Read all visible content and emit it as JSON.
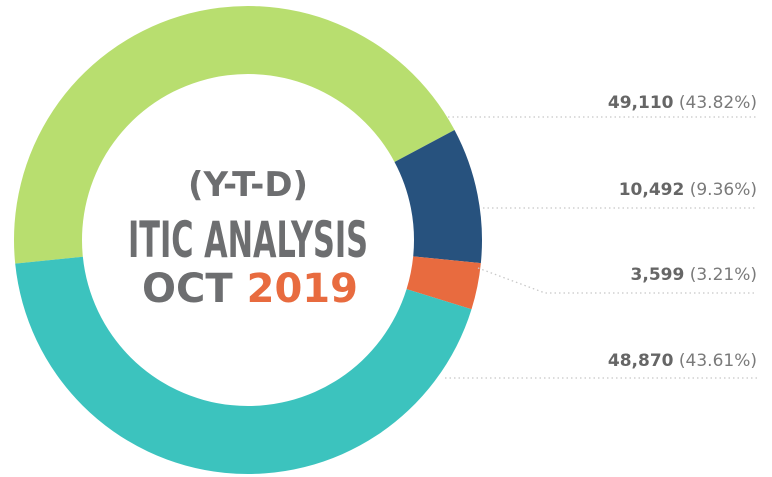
{
  "chart_data": {
    "type": "donut",
    "title_lines": [
      "(Y-T-D)",
      "ITIC ANALYSIS"
    ],
    "subtitle": "OCT",
    "year": "2019",
    "values": [
      49110,
      10492,
      3599,
      48870
    ],
    "value_labels": [
      "49,110",
      "10,492",
      "3,599",
      "48,870"
    ],
    "percent_labels": [
      "(43.82%)",
      "(9.36%)",
      "(3.21%)",
      "(43.61%)"
    ],
    "colors": [
      "#b8de6f",
      "#27527e",
      "#e86b3f",
      "#3cc3be"
    ]
  }
}
